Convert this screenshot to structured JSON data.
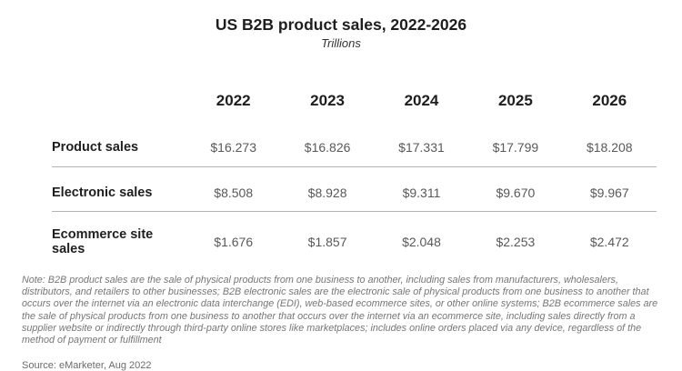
{
  "header": {
    "title": "US B2B product sales, 2022-2026",
    "subtitle": "Trillions"
  },
  "table": {
    "years": [
      "2022",
      "2023",
      "2024",
      "2025",
      "2026"
    ],
    "rows": [
      {
        "label": "Product sales",
        "values": [
          "$16.273",
          "$16.826",
          "$17.331",
          "$17.799",
          "$18.208"
        ]
      },
      {
        "label": "Electronic sales",
        "values": [
          "$8.508",
          "$8.928",
          "$9.311",
          "$9.670",
          "$9.967"
        ]
      },
      {
        "label": "Ecommerce site sales",
        "values": [
          "$1.676",
          "$1.857",
          "$2.048",
          "$2.253",
          "$2.472"
        ]
      }
    ]
  },
  "footer": {
    "note": "Note: B2B product sales are the sale of physical products from one business to another, including sales from manufacturers, wholesalers, distributors, and retailers to other businesses; B2B electronic sales are the electronic sale of physical products from one business to another that occurs over the internet via an electronic data interchange (EDI), web-based ecommerce sites, or other online systems; B2B ecommerce sales are the sale of physical products from one business to another that occurs over the internet via an ecommerce site, including sales directly from a supplier website or indirectly through third-party online stores like marketplaces; includes online orders placed via any device, regardless of the method of payment or fulfillment",
    "source": "Source: eMarketer, Aug 2022"
  },
  "colors": {
    "title_text": "#1e1e1e",
    "label_text": "#1f1f1f",
    "value_text": "#595959",
    "note_text": "#767676",
    "divider": "#b3b3b3",
    "background": "#ffffff"
  },
  "chart_data": {
    "type": "table",
    "title": "US B2B product sales, 2022-2026",
    "subtitle": "Trillions",
    "unit": "Trillions of US dollars",
    "categories": [
      "2022",
      "2023",
      "2024",
      "2025",
      "2026"
    ],
    "series": [
      {
        "name": "Product sales",
        "values": [
          16.273,
          16.826,
          17.331,
          17.799,
          18.208
        ]
      },
      {
        "name": "Electronic sales",
        "values": [
          8.508,
          8.928,
          9.311,
          9.67,
          9.967
        ]
      },
      {
        "name": "Ecommerce site sales",
        "values": [
          1.676,
          1.857,
          2.048,
          2.253,
          2.472
        ]
      }
    ],
    "source": "Source: eMarketer, Aug 2022",
    "layout": {
      "grid": "horizontal dividers after rows 1 and 2",
      "legend": "none"
    }
  }
}
